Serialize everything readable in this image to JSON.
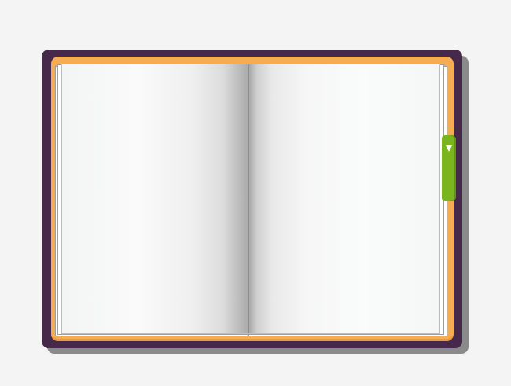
{
  "book": {
    "cover_color": "#45284a",
    "board_color": "#f6ac53",
    "page_color": "#f6f7f7",
    "bookmark_color": "#7ab51d",
    "bookmark_icon": "triangle-down-icon"
  }
}
